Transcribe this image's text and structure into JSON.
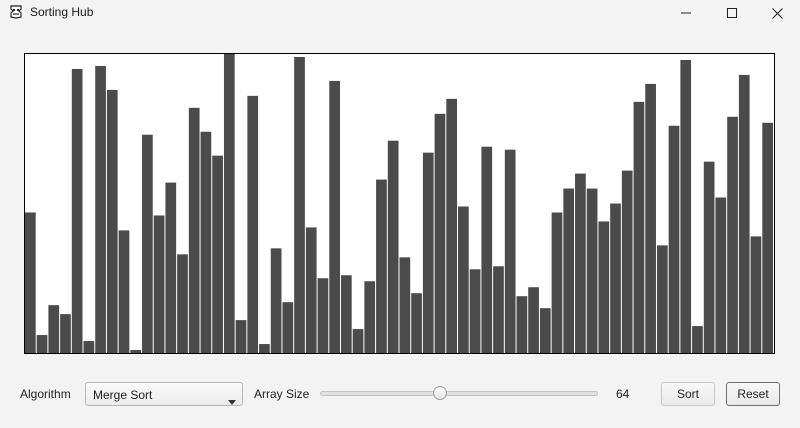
{
  "window": {
    "title": "Sorting Hub"
  },
  "controls": {
    "algorithm_label": "Algorithm",
    "algorithm_selected": "Merge Sort",
    "array_size_label": "Array Size",
    "array_size_value": "64",
    "array_size_min": 1,
    "array_size_max": 150,
    "sort_button": "Sort",
    "reset_button": "Reset"
  },
  "colors": {
    "bar": "#4b4b4b",
    "bar_gap": "#ffffff"
  },
  "icons": {
    "app": "app-logo-icon",
    "minimize": "minimize-icon",
    "maximize": "maximize-icon",
    "close": "close-icon",
    "dropdown": "chevron-down-icon"
  },
  "chart_data": {
    "type": "bar",
    "max_value": 100,
    "values": [
      47,
      6,
      16,
      13,
      95,
      4,
      96,
      88,
      41,
      1,
      73,
      46,
      57,
      33,
      82,
      74,
      66,
      100,
      11,
      86,
      3,
      35,
      17,
      99,
      42,
      25,
      91,
      26,
      8,
      24,
      58,
      71,
      32,
      20,
      67,
      80,
      85,
      49,
      28,
      69,
      29,
      68,
      19,
      22,
      15,
      47,
      55,
      60,
      55,
      44,
      50,
      61,
      84,
      90,
      36,
      76,
      98,
      9,
      64,
      52,
      79,
      93,
      39,
      77
    ]
  }
}
